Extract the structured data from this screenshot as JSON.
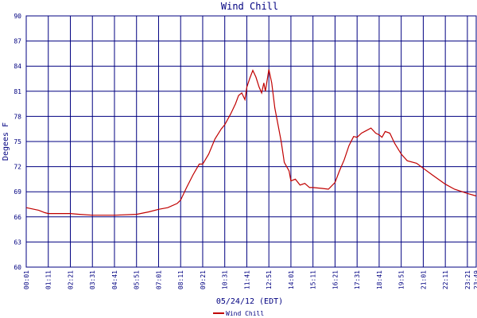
{
  "chart_data": {
    "type": "line",
    "title": "Wind Chill",
    "ylabel": "Degees F",
    "xlabel": "05/24/12 (EDT)",
    "ylim": [
      60,
      90
    ],
    "yticks": [
      60,
      63,
      66,
      69,
      72,
      75,
      78,
      81,
      84,
      87,
      90
    ],
    "xticks": [
      "00:01",
      "01:11",
      "02:21",
      "03:31",
      "04:41",
      "05:51",
      "07:01",
      "08:11",
      "09:21",
      "10:31",
      "11:41",
      "12:51",
      "14:01",
      "15:11",
      "16:21",
      "17:31",
      "18:41",
      "19:51",
      "21:01",
      "22:11",
      "23:21",
      "23:49"
    ],
    "grid": true,
    "legend": "bottom",
    "x": [
      "00:01",
      "00:40",
      "01:00",
      "01:11",
      "01:40",
      "02:21",
      "02:50",
      "03:31",
      "04:41",
      "05:51",
      "06:30",
      "07:01",
      "07:30",
      "08:00",
      "08:11",
      "08:30",
      "08:50",
      "09:10",
      "09:21",
      "09:40",
      "10:00",
      "10:20",
      "10:31",
      "10:50",
      "11:05",
      "11:15",
      "11:25",
      "11:35",
      "11:41",
      "11:50",
      "12:00",
      "12:10",
      "12:20",
      "12:28",
      "12:35",
      "12:40",
      "12:51",
      "13:00",
      "13:10",
      "13:20",
      "13:30",
      "13:40",
      "13:55",
      "14:01",
      "14:15",
      "14:30",
      "14:45",
      "15:00",
      "15:11",
      "15:40",
      "16:00",
      "16:21",
      "16:35",
      "16:50",
      "17:05",
      "17:20",
      "17:31",
      "17:45",
      "18:00",
      "18:15",
      "18:30",
      "18:41",
      "18:50",
      "19:00",
      "19:15",
      "19:30",
      "19:51",
      "20:10",
      "20:40",
      "21:01",
      "21:30",
      "22:11",
      "22:40",
      "23:21",
      "23:49"
    ],
    "series": [
      {
        "name": "Wind Chill",
        "color": "#c00000",
        "values": [
          67.1,
          66.8,
          66.5,
          66.4,
          66.4,
          66.4,
          66.3,
          66.2,
          66.2,
          66.3,
          66.6,
          66.9,
          67.1,
          67.6,
          68.0,
          69.5,
          71.0,
          72.3,
          72.3,
          73.5,
          75.3,
          76.5,
          77.0,
          78.3,
          79.5,
          80.5,
          80.8,
          80.0,
          81.5,
          82.5,
          83.5,
          82.7,
          81.5,
          80.8,
          82.0,
          81.0,
          83.6,
          82.0,
          79.0,
          77.0,
          75.0,
          72.5,
          71.5,
          70.3,
          70.5,
          69.8,
          70.0,
          69.5,
          69.5,
          69.4,
          69.3,
          70.1,
          71.5,
          72.8,
          74.5,
          75.6,
          75.5,
          76.0,
          76.3,
          76.6,
          76.0,
          75.8,
          75.5,
          76.2,
          76.0,
          74.8,
          73.5,
          72.7,
          72.4,
          71.8,
          71.0,
          69.9,
          69.3,
          68.8,
          68.5
        ]
      }
    ]
  }
}
